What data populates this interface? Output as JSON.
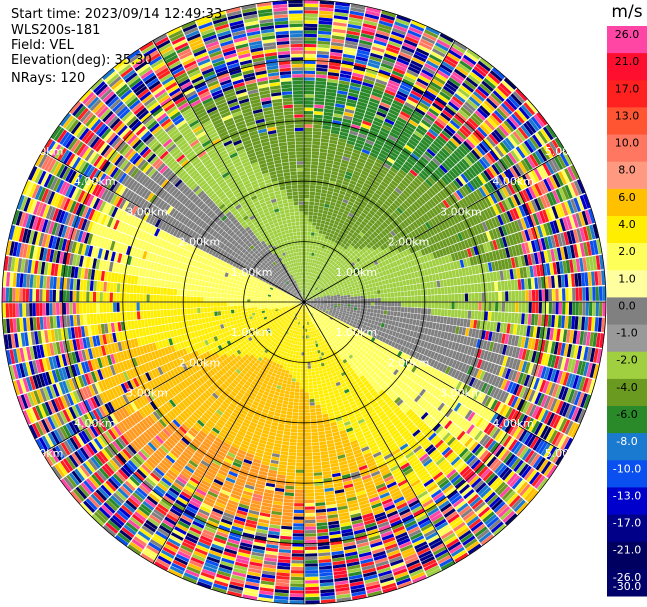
{
  "header": {
    "start_time": "Start time: 2023/09/14 12:49:33",
    "instrument": "WLS200s-181",
    "field": "Field: VEL",
    "elevation": "Elevation(deg): 35.30",
    "nrays": "NRays: 120"
  },
  "chart_data": {
    "type": "heatmap",
    "projection": "polar-ppi",
    "field": "VEL",
    "units": "m/s",
    "n_rays": 120,
    "elevation_deg": 35.3,
    "range_rings": [
      {
        "value_km": 1.0,
        "label": "1.00km"
      },
      {
        "value_km": 2.0,
        "label": "2.00km"
      },
      {
        "value_km": 3.0,
        "label": "3.00km"
      },
      {
        "value_km": 4.0,
        "label": "4.00km"
      },
      {
        "value_km": 5.0,
        "label": "5.00km"
      }
    ],
    "max_range_km": 5.0,
    "clean_range_km": 3.7,
    "ring_label_azimuths_deg": [
      300,
      60,
      240,
      120
    ],
    "spoke_azimuths_deg": [
      0,
      30,
      60,
      90,
      120,
      150,
      180,
      210,
      240,
      270,
      300,
      330
    ],
    "colorbar": {
      "title": "m/s",
      "ticks": [
        "26.0",
        "21.0",
        "17.0",
        "13.0",
        "10.0",
        "8.0",
        "6.0",
        "4.0",
        "2.0",
        "1.0",
        "0.0",
        "-1.0",
        "-2.0",
        "-4.0",
        "-6.0",
        "-8.0",
        "-10.0",
        "-13.0",
        "-17.0",
        "-21.0",
        "-26.0",
        "-30.0"
      ],
      "colors": [
        "#ff46a5",
        "#ff0f2f",
        "#ff2020",
        "#ff5533",
        "#ff7760",
        "#ff9a80",
        "#ffc000",
        "#ffee00",
        "#ffff5a",
        "#ffffa0",
        "#808080",
        "#999999",
        "#a0d040",
        "#6a9a20",
        "#2a8a2a",
        "#1a7ad0",
        "#0a50f0",
        "#0000cc",
        "#000088",
        "#000060",
        "#00006a"
      ]
    },
    "velocity_pattern": {
      "receding_direction_deg": 205,
      "approaching_direction_deg": 25,
      "inbound_colors": [
        "#808080",
        "#a0d040",
        "#6a9a20",
        "#2a8a2a"
      ],
      "outbound_colors": [
        "#ffff5a",
        "#ffee00",
        "#ffc000",
        "#ff9a20"
      ]
    }
  }
}
